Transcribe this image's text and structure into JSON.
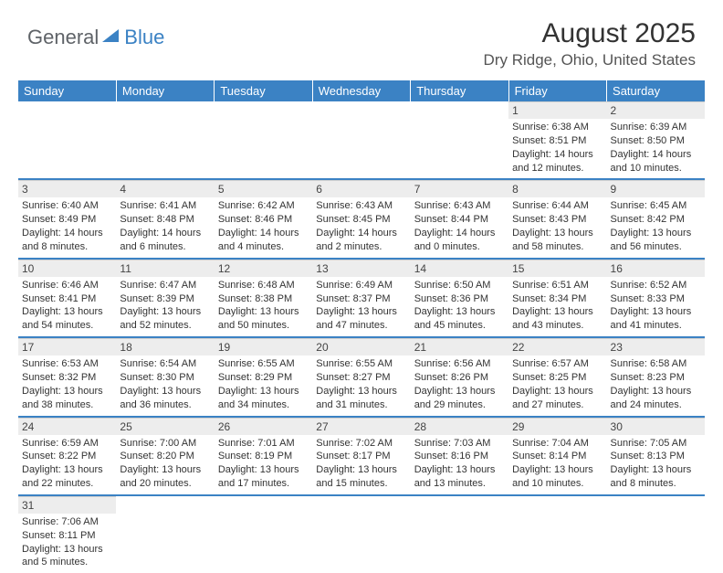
{
  "logo": {
    "general": "General",
    "blue": "Blue"
  },
  "title": "August 2025",
  "location": "Dry Ridge, Ohio, United States",
  "headers": [
    "Sunday",
    "Monday",
    "Tuesday",
    "Wednesday",
    "Thursday",
    "Friday",
    "Saturday"
  ],
  "colors": {
    "header_bg": "#3b82c4",
    "header_fg": "#ffffff",
    "daynum_bg": "#ededed",
    "row_border": "#3b82c4",
    "background": "#ffffff"
  },
  "weeks": [
    [
      {
        "n": "",
        "lines": []
      },
      {
        "n": "",
        "lines": []
      },
      {
        "n": "",
        "lines": []
      },
      {
        "n": "",
        "lines": []
      },
      {
        "n": "",
        "lines": []
      },
      {
        "n": "1",
        "lines": [
          "Sunrise: 6:38 AM",
          "Sunset: 8:51 PM",
          "Daylight: 14 hours and 12 minutes."
        ]
      },
      {
        "n": "2",
        "lines": [
          "Sunrise: 6:39 AM",
          "Sunset: 8:50 PM",
          "Daylight: 14 hours and 10 minutes."
        ]
      }
    ],
    [
      {
        "n": "3",
        "lines": [
          "Sunrise: 6:40 AM",
          "Sunset: 8:49 PM",
          "Daylight: 14 hours and 8 minutes."
        ]
      },
      {
        "n": "4",
        "lines": [
          "Sunrise: 6:41 AM",
          "Sunset: 8:48 PM",
          "Daylight: 14 hours and 6 minutes."
        ]
      },
      {
        "n": "5",
        "lines": [
          "Sunrise: 6:42 AM",
          "Sunset: 8:46 PM",
          "Daylight: 14 hours and 4 minutes."
        ]
      },
      {
        "n": "6",
        "lines": [
          "Sunrise: 6:43 AM",
          "Sunset: 8:45 PM",
          "Daylight: 14 hours and 2 minutes."
        ]
      },
      {
        "n": "7",
        "lines": [
          "Sunrise: 6:43 AM",
          "Sunset: 8:44 PM",
          "Daylight: 14 hours and 0 minutes."
        ]
      },
      {
        "n": "8",
        "lines": [
          "Sunrise: 6:44 AM",
          "Sunset: 8:43 PM",
          "Daylight: 13 hours and 58 minutes."
        ]
      },
      {
        "n": "9",
        "lines": [
          "Sunrise: 6:45 AM",
          "Sunset: 8:42 PM",
          "Daylight: 13 hours and 56 minutes."
        ]
      }
    ],
    [
      {
        "n": "10",
        "lines": [
          "Sunrise: 6:46 AM",
          "Sunset: 8:41 PM",
          "Daylight: 13 hours and 54 minutes."
        ]
      },
      {
        "n": "11",
        "lines": [
          "Sunrise: 6:47 AM",
          "Sunset: 8:39 PM",
          "Daylight: 13 hours and 52 minutes."
        ]
      },
      {
        "n": "12",
        "lines": [
          "Sunrise: 6:48 AM",
          "Sunset: 8:38 PM",
          "Daylight: 13 hours and 50 minutes."
        ]
      },
      {
        "n": "13",
        "lines": [
          "Sunrise: 6:49 AM",
          "Sunset: 8:37 PM",
          "Daylight: 13 hours and 47 minutes."
        ]
      },
      {
        "n": "14",
        "lines": [
          "Sunrise: 6:50 AM",
          "Sunset: 8:36 PM",
          "Daylight: 13 hours and 45 minutes."
        ]
      },
      {
        "n": "15",
        "lines": [
          "Sunrise: 6:51 AM",
          "Sunset: 8:34 PM",
          "Daylight: 13 hours and 43 minutes."
        ]
      },
      {
        "n": "16",
        "lines": [
          "Sunrise: 6:52 AM",
          "Sunset: 8:33 PM",
          "Daylight: 13 hours and 41 minutes."
        ]
      }
    ],
    [
      {
        "n": "17",
        "lines": [
          "Sunrise: 6:53 AM",
          "Sunset: 8:32 PM",
          "Daylight: 13 hours and 38 minutes."
        ]
      },
      {
        "n": "18",
        "lines": [
          "Sunrise: 6:54 AM",
          "Sunset: 8:30 PM",
          "Daylight: 13 hours and 36 minutes."
        ]
      },
      {
        "n": "19",
        "lines": [
          "Sunrise: 6:55 AM",
          "Sunset: 8:29 PM",
          "Daylight: 13 hours and 34 minutes."
        ]
      },
      {
        "n": "20",
        "lines": [
          "Sunrise: 6:55 AM",
          "Sunset: 8:27 PM",
          "Daylight: 13 hours and 31 minutes."
        ]
      },
      {
        "n": "21",
        "lines": [
          "Sunrise: 6:56 AM",
          "Sunset: 8:26 PM",
          "Daylight: 13 hours and 29 minutes."
        ]
      },
      {
        "n": "22",
        "lines": [
          "Sunrise: 6:57 AM",
          "Sunset: 8:25 PM",
          "Daylight: 13 hours and 27 minutes."
        ]
      },
      {
        "n": "23",
        "lines": [
          "Sunrise: 6:58 AM",
          "Sunset: 8:23 PM",
          "Daylight: 13 hours and 24 minutes."
        ]
      }
    ],
    [
      {
        "n": "24",
        "lines": [
          "Sunrise: 6:59 AM",
          "Sunset: 8:22 PM",
          "Daylight: 13 hours and 22 minutes."
        ]
      },
      {
        "n": "25",
        "lines": [
          "Sunrise: 7:00 AM",
          "Sunset: 8:20 PM",
          "Daylight: 13 hours and 20 minutes."
        ]
      },
      {
        "n": "26",
        "lines": [
          "Sunrise: 7:01 AM",
          "Sunset: 8:19 PM",
          "Daylight: 13 hours and 17 minutes."
        ]
      },
      {
        "n": "27",
        "lines": [
          "Sunrise: 7:02 AM",
          "Sunset: 8:17 PM",
          "Daylight: 13 hours and 15 minutes."
        ]
      },
      {
        "n": "28",
        "lines": [
          "Sunrise: 7:03 AM",
          "Sunset: 8:16 PM",
          "Daylight: 13 hours and 13 minutes."
        ]
      },
      {
        "n": "29",
        "lines": [
          "Sunrise: 7:04 AM",
          "Sunset: 8:14 PM",
          "Daylight: 13 hours and 10 minutes."
        ]
      },
      {
        "n": "30",
        "lines": [
          "Sunrise: 7:05 AM",
          "Sunset: 8:13 PM",
          "Daylight: 13 hours and 8 minutes."
        ]
      }
    ],
    [
      {
        "n": "31",
        "lines": [
          "Sunrise: 7:06 AM",
          "Sunset: 8:11 PM",
          "Daylight: 13 hours and 5 minutes."
        ]
      },
      {
        "n": "",
        "lines": []
      },
      {
        "n": "",
        "lines": []
      },
      {
        "n": "",
        "lines": []
      },
      {
        "n": "",
        "lines": []
      },
      {
        "n": "",
        "lines": []
      },
      {
        "n": "",
        "lines": []
      }
    ]
  ]
}
